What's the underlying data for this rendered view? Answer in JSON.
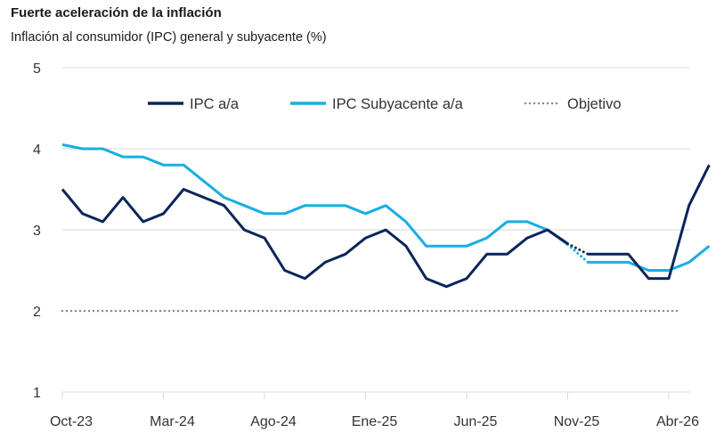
{
  "chart_data": {
    "type": "line",
    "title": "Fuerte aceleración de la inflación",
    "subtitle": "Inflación al consumidor (IPC) general y subyacente (%)",
    "ylim": [
      1,
      5
    ],
    "yticks": [
      1,
      2,
      3,
      4,
      5
    ],
    "xticks": [
      "Oct-23",
      "Mar-24",
      "Ago-24",
      "Ene-25",
      "Jun-25",
      "Nov-25",
      "Abr-26"
    ],
    "grid": true,
    "legend_position": "top",
    "legend": [
      "IPC a/a",
      "IPC Subyacente a/a",
      "Objetivo"
    ],
    "months": [
      "Oct-23",
      "Nov-23",
      "Dic-23",
      "Ene-24",
      "Feb-24",
      "Mar-24",
      "Abr-24",
      "May-24",
      "Jun-24",
      "Jul-24",
      "Ago-24",
      "Sep-24",
      "Oct-24",
      "Nov-24",
      "Dic-24",
      "Ene-25",
      "Feb-25",
      "Mar-25",
      "Abr-25",
      "May-25",
      "Jun-25",
      "Jul-25",
      "Ago-25",
      "Sep-25",
      "Oct-25",
      "Nov-25",
      "Dic-25",
      "Ene-26",
      "Feb-26",
      "Mar-26",
      "Abr-26",
      "May-26"
    ],
    "series": [
      {
        "name": "IPC a/a",
        "color": "#0b2559",
        "actual": [
          3.5,
          3.2,
          3.1,
          3.4,
          3.1,
          3.2,
          3.5,
          3.4,
          3.3,
          3.0,
          2.9,
          2.5,
          2.4,
          2.6,
          2.7,
          2.9,
          3.0,
          2.8,
          2.4,
          2.3,
          2.4,
          2.7,
          2.7,
          2.9,
          3.0,
          2.83
        ],
        "forecast": [
          2.83,
          2.7,
          2.7,
          2.7,
          2.4,
          2.4,
          3.3,
          3.8
        ]
      },
      {
        "name": "IPC Subyacente a/a",
        "color": "#17aee3",
        "actual": [
          4.05,
          4.0,
          4.0,
          3.9,
          3.9,
          3.8,
          3.8,
          3.6,
          3.4,
          3.3,
          3.2,
          3.2,
          3.3,
          3.3,
          3.3,
          3.2,
          3.3,
          3.1,
          2.8,
          2.8,
          2.8,
          2.9,
          3.1,
          3.1,
          3.0,
          2.82
        ],
        "forecast": [
          2.82,
          2.6,
          2.6,
          2.6,
          2.5,
          2.5,
          2.6,
          2.8
        ]
      },
      {
        "name": "Objetivo",
        "color": "#8c8c8c",
        "style": "dotted",
        "value": 2
      }
    ]
  }
}
